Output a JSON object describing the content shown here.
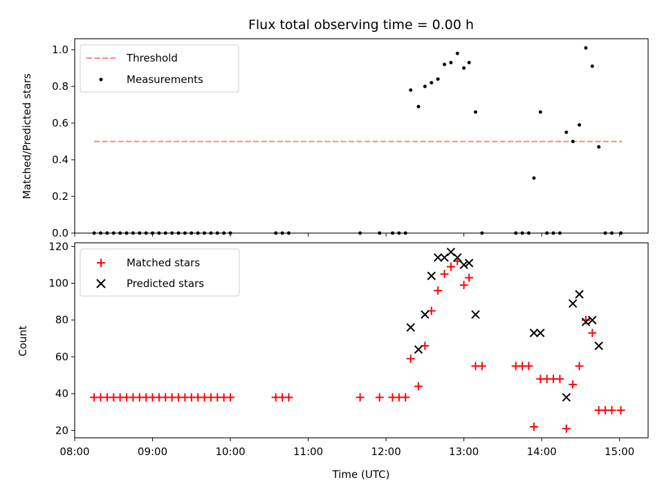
{
  "chart_data": [
    {
      "type": "scatter",
      "title": "Flux total observing time = 0.00 h",
      "xlabel": "",
      "ylabel": "Matched/Predicted stars",
      "xlim": [
        "08:00",
        "15:22"
      ],
      "ylim": [
        0,
        1.06
      ],
      "yticks": [
        "0.0",
        "0.2",
        "0.4",
        "0.6",
        "0.8",
        "1.0"
      ],
      "legend_position": "top-left",
      "threshold": {
        "name": "Threshold",
        "value": 0.5,
        "x_start": "08:15",
        "x_end": "15:02",
        "color": "#ff7f7f",
        "style": "dashed"
      },
      "series": [
        {
          "name": "Measurements",
          "color": "#000000",
          "marker": "dot",
          "points": [
            [
              "08:15",
              0.0
            ],
            [
              "08:20",
              0.0
            ],
            [
              "08:25",
              0.0
            ],
            [
              "08:30",
              0.0
            ],
            [
              "08:35",
              0.0
            ],
            [
              "08:40",
              0.0
            ],
            [
              "08:45",
              0.0
            ],
            [
              "08:50",
              0.0
            ],
            [
              "08:55",
              0.0
            ],
            [
              "09:00",
              0.0
            ],
            [
              "09:05",
              0.0
            ],
            [
              "09:10",
              0.0
            ],
            [
              "09:15",
              0.0
            ],
            [
              "09:20",
              0.0
            ],
            [
              "09:25",
              0.0
            ],
            [
              "09:30",
              0.0
            ],
            [
              "09:35",
              0.0
            ],
            [
              "09:40",
              0.0
            ],
            [
              "09:45",
              0.0
            ],
            [
              "09:50",
              0.0
            ],
            [
              "09:55",
              0.0
            ],
            [
              "10:00",
              0.0
            ],
            [
              "10:35",
              0.0
            ],
            [
              "10:40",
              0.0
            ],
            [
              "10:45",
              0.0
            ],
            [
              "11:40",
              0.0
            ],
            [
              "11:55",
              0.0
            ],
            [
              "12:05",
              0.0
            ],
            [
              "12:10",
              0.0
            ],
            [
              "12:15",
              0.0
            ],
            [
              "12:19",
              0.78
            ],
            [
              "12:25",
              0.69
            ],
            [
              "12:30",
              0.8
            ],
            [
              "12:35",
              0.82
            ],
            [
              "12:40",
              0.84
            ],
            [
              "12:45",
              0.92
            ],
            [
              "12:50",
              0.93
            ],
            [
              "12:55",
              0.98
            ],
            [
              "13:00",
              0.9
            ],
            [
              "13:04",
              0.93
            ],
            [
              "13:09",
              0.66
            ],
            [
              "13:14",
              0.0
            ],
            [
              "13:40",
              0.0
            ],
            [
              "13:45",
              0.0
            ],
            [
              "13:50",
              0.0
            ],
            [
              "13:54",
              0.3
            ],
            [
              "13:59",
              0.66
            ],
            [
              "14:04",
              0.0
            ],
            [
              "14:09",
              0.0
            ],
            [
              "14:14",
              0.0
            ],
            [
              "14:19",
              0.55
            ],
            [
              "14:24",
              0.5
            ],
            [
              "14:29",
              0.59
            ],
            [
              "14:34",
              1.01
            ],
            [
              "14:39",
              0.91
            ],
            [
              "14:44",
              0.47
            ],
            [
              "14:49",
              0.0
            ],
            [
              "14:54",
              0.0
            ],
            [
              "15:01",
              0.0
            ]
          ]
        }
      ]
    },
    {
      "type": "scatter",
      "title": "",
      "xlabel": "Time (UTC)",
      "ylabel": "Count",
      "xlim": [
        "08:00",
        "15:22"
      ],
      "ylim": [
        16,
        122
      ],
      "yticks": [
        "20",
        "40",
        "60",
        "80",
        "100",
        "120"
      ],
      "xticks": [
        "08:00",
        "09:00",
        "10:00",
        "11:00",
        "12:00",
        "13:00",
        "14:00",
        "15:00"
      ],
      "legend_position": "top-left",
      "series": [
        {
          "name": "Matched stars",
          "color": "#ff0000",
          "marker": "plus",
          "points": [
            [
              "08:15",
              38
            ],
            [
              "08:20",
              38
            ],
            [
              "08:25",
              38
            ],
            [
              "08:30",
              38
            ],
            [
              "08:35",
              38
            ],
            [
              "08:40",
              38
            ],
            [
              "08:45",
              38
            ],
            [
              "08:50",
              38
            ],
            [
              "08:55",
              38
            ],
            [
              "09:00",
              38
            ],
            [
              "09:05",
              38
            ],
            [
              "09:10",
              38
            ],
            [
              "09:15",
              38
            ],
            [
              "09:20",
              38
            ],
            [
              "09:25",
              38
            ],
            [
              "09:30",
              38
            ],
            [
              "09:35",
              38
            ],
            [
              "09:40",
              38
            ],
            [
              "09:45",
              38
            ],
            [
              "09:50",
              38
            ],
            [
              "09:55",
              38
            ],
            [
              "10:00",
              38
            ],
            [
              "10:35",
              38
            ],
            [
              "10:40",
              38
            ],
            [
              "10:45",
              38
            ],
            [
              "11:40",
              38
            ],
            [
              "11:55",
              38
            ],
            [
              "12:05",
              38
            ],
            [
              "12:10",
              38
            ],
            [
              "12:15",
              38
            ],
            [
              "12:19",
              59
            ],
            [
              "12:25",
              44
            ],
            [
              "12:30",
              66
            ],
            [
              "12:35",
              85
            ],
            [
              "12:40",
              96
            ],
            [
              "12:45",
              105
            ],
            [
              "12:50",
              109
            ],
            [
              "12:55",
              112
            ],
            [
              "13:00",
              99
            ],
            [
              "13:04",
              103
            ],
            [
              "13:09",
              55
            ],
            [
              "13:14",
              55
            ],
            [
              "13:40",
              55
            ],
            [
              "13:45",
              55
            ],
            [
              "13:50",
              55
            ],
            [
              "13:54",
              22
            ],
            [
              "13:59",
              48
            ],
            [
              "14:04",
              48
            ],
            [
              "14:09",
              48
            ],
            [
              "14:14",
              48
            ],
            [
              "14:19",
              21
            ],
            [
              "14:24",
              45
            ],
            [
              "14:29",
              55
            ],
            [
              "14:34",
              80
            ],
            [
              "14:39",
              73
            ],
            [
              "14:44",
              31
            ],
            [
              "14:49",
              31
            ],
            [
              "14:54",
              31
            ],
            [
              "15:01",
              31
            ]
          ]
        },
        {
          "name": "Predicted stars",
          "color": "#000000",
          "marker": "x",
          "points": [
            [
              "12:19",
              76
            ],
            [
              "12:25",
              64
            ],
            [
              "12:30",
              83
            ],
            [
              "12:35",
              104
            ],
            [
              "12:40",
              114
            ],
            [
              "12:45",
              114
            ],
            [
              "12:50",
              117
            ],
            [
              "12:55",
              114
            ],
            [
              "13:00",
              110
            ],
            [
              "13:04",
              111
            ],
            [
              "13:09",
              83
            ],
            [
              "13:54",
              73
            ],
            [
              "13:59",
              73
            ],
            [
              "14:19",
              38
            ],
            [
              "14:24",
              89
            ],
            [
              "14:29",
              94
            ],
            [
              "14:34",
              79
            ],
            [
              "14:39",
              80
            ],
            [
              "14:44",
              66
            ]
          ]
        }
      ]
    }
  ]
}
